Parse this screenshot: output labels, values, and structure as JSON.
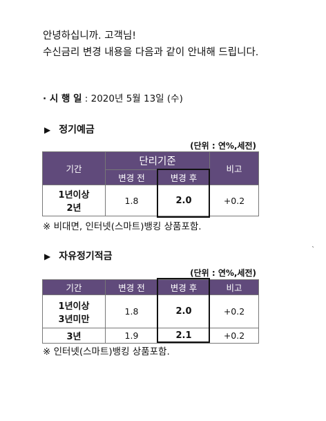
{
  "greeting": {
    "line1": "안녕하십니까. 고객님!",
    "line2": "수신금리 변경 내용을 다음과 같이 안내해 드립니다."
  },
  "effective_date": {
    "label": "· 시 행 일",
    "value": " : 2020년 5월 13일 (수)"
  },
  "section1": {
    "bullet": "▶",
    "title": "정기예금",
    "unit": "(단위 : 연%,세전)",
    "header": {
      "period": "기간",
      "group": "단리기준",
      "before": "변경 전",
      "after": "변경 후",
      "note": "비고"
    },
    "rows": [
      {
        "period_line1": "1년이상",
        "period_line2": "2년",
        "before": "1.8",
        "after": "2.0",
        "note": "+0.2"
      }
    ],
    "footnote": "※ 비대면, 인터넷(스마트)뱅킹 상품포함."
  },
  "section2": {
    "bullet": "▶",
    "title": "자유정기적금",
    "unit": "(단위 : 연%,세전)",
    "header": {
      "period": "기간",
      "before": "변경 전",
      "after": "변경 후",
      "note": "비고"
    },
    "rows": [
      {
        "period_line1": "1년이상",
        "period_line2": "3년미만",
        "before": "1.8",
        "after": "2.0",
        "note": "+0.2"
      },
      {
        "period_line1": "3년",
        "period_line2": "",
        "before": "1.9",
        "after": "2.1",
        "note": "+0.2"
      }
    ],
    "footnote": "※ 인터넷(스마트)뱅킹 상품포함."
  },
  "colors": {
    "header_bg": "#604a7b",
    "header_text": "#ffffff",
    "highlight_border": "#111111"
  }
}
